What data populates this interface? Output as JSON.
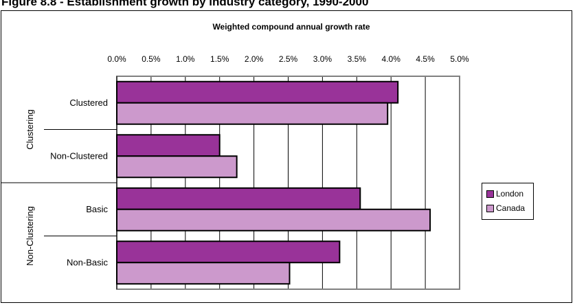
{
  "page": {
    "title": "Figure 8.8 - Establishment growth by industry category, 1990-2000"
  },
  "chart_data": {
    "type": "bar",
    "orientation": "horizontal",
    "title": "Weighted compound annual growth rate",
    "categories": [
      "Clustered",
      "Non-Clustered",
      "Basic",
      "Non-Basic"
    ],
    "groups": [
      {
        "label": "Clustering",
        "categories": [
          "Clustered",
          "Non-Clustered"
        ]
      },
      {
        "label": "Non-Clustering",
        "categories": [
          "Basic",
          "Non-Basic"
        ]
      }
    ],
    "series": [
      {
        "name": "London",
        "color": "#993399",
        "values": [
          4.1,
          1.5,
          3.55,
          3.25
        ]
      },
      {
        "name": "Canada",
        "color": "#cc99cc",
        "values": [
          3.95,
          1.75,
          4.57,
          2.52
        ]
      }
    ],
    "xlim": [
      0,
      5
    ],
    "x_ticks": [
      "0.0%",
      "0.5%",
      "1.0%",
      "1.5%",
      "2.0%",
      "2.5%",
      "3.0%",
      "3.5%",
      "4.0%",
      "4.5%",
      "5.0%"
    ],
    "x_tick_values": [
      0,
      0.5,
      1,
      1.5,
      2,
      2.5,
      3,
      3.5,
      4,
      4.5,
      5
    ],
    "grid": true,
    "legend_position": "right"
  }
}
